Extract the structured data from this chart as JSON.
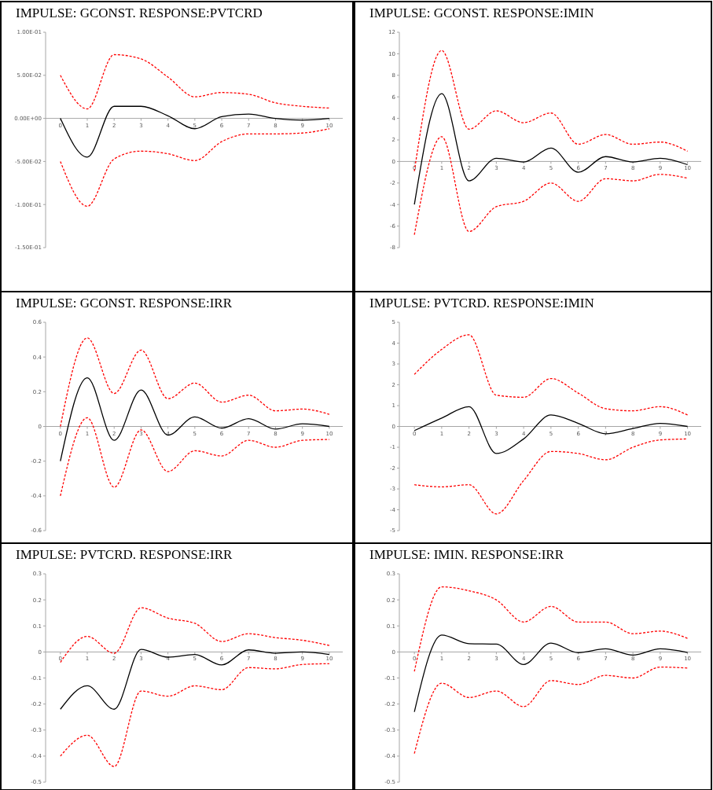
{
  "chart_data": [
    {
      "type": "line",
      "title": "IMPULSE: GCONST. RESPONSE:PVTCRD",
      "x": [
        0,
        1,
        2,
        3,
        4,
        5,
        6,
        7,
        8,
        9,
        10
      ],
      "xlim": [
        -0.55,
        10.5
      ],
      "xticks": [
        0,
        1,
        2,
        3,
        4,
        5,
        6,
        7,
        8,
        9,
        10
      ],
      "ylim": [
        -0.15,
        0.1
      ],
      "yticks": [
        {
          "value": 0.1,
          "label": "1.00E-01"
        },
        {
          "value": 0.05,
          "label": "5.00E-02"
        },
        {
          "value": 0,
          "label": "0.00E+00"
        },
        {
          "value": -0.05,
          "label": "-5.00E-02"
        },
        {
          "value": -0.1,
          "label": "-1.00E-01"
        },
        {
          "value": -0.15,
          "label": "-1.50E-01"
        }
      ],
      "series": [
        {
          "color": "#000000",
          "line_style": "solid",
          "values": [
            0,
            -0.045,
            0.014,
            0.014,
            0.003,
            -0.012,
            0.002,
            0.005,
            0,
            -0.002,
            0
          ]
        },
        {
          "color": "#ff0000",
          "line_style": "dashed",
          "values": [
            0.05,
            0.011,
            0.074,
            0.069,
            0.048,
            0.025,
            0.03,
            0.028,
            0.018,
            0.014,
            0.012
          ]
        },
        {
          "color": "#ff0000",
          "line_style": "dashed",
          "values": [
            -0.05,
            -0.102,
            -0.047,
            -0.038,
            -0.041,
            -0.049,
            -0.027,
            -0.018,
            -0.018,
            -0.017,
            -0.012
          ]
        }
      ]
    },
    {
      "type": "line",
      "title": "IMPULSE: GCONST. RESPONSE:IMIN",
      "x": [
        0,
        1,
        2,
        3,
        4,
        5,
        6,
        7,
        8,
        9,
        10
      ],
      "xlim": [
        -0.55,
        10.5
      ],
      "xticks": [
        0,
        1,
        2,
        3,
        4,
        5,
        6,
        7,
        8,
        9,
        10
      ],
      "ylim": [
        -8,
        12
      ],
      "yticks": [
        12,
        10,
        8,
        6,
        4,
        2,
        0,
        -2,
        -4,
        -6,
        -8
      ],
      "series": [
        {
          "color": "#000000",
          "line_style": "solid",
          "values": [
            -4,
            6.3,
            -1.8,
            0.3,
            -0.05,
            1.25,
            -1,
            0.45,
            -0.05,
            0.3,
            -0.3
          ]
        },
        {
          "color": "#ff0000",
          "line_style": "dashed",
          "values": [
            -0.9,
            10.3,
            3,
            4.7,
            3.6,
            4.5,
            1.6,
            2.5,
            1.6,
            1.8,
            0.95
          ]
        },
        {
          "color": "#ff0000",
          "line_style": "dashed",
          "values": [
            -6.8,
            2.3,
            -6.5,
            -4.2,
            -3.7,
            -2,
            -3.7,
            -1.6,
            -1.8,
            -1.2,
            -1.55
          ]
        }
      ]
    },
    {
      "type": "line",
      "title": "IMPULSE: GCONST. RESPONSE:IRR",
      "x": [
        0,
        1,
        2,
        3,
        4,
        5,
        6,
        7,
        8,
        9,
        10
      ],
      "xlim": [
        -0.55,
        10.5
      ],
      "xticks": [
        0,
        1,
        2,
        3,
        4,
        5,
        6,
        7,
        8,
        9,
        10
      ],
      "ylim": [
        -0.6,
        0.6
      ],
      "yticks": [
        0.6,
        0.4,
        0.2,
        0,
        -0.2,
        -0.4,
        -0.6
      ],
      "series": [
        {
          "color": "#000000",
          "line_style": "solid",
          "values": [
            -0.2,
            0.28,
            -0.08,
            0.21,
            -0.05,
            0.055,
            -0.01,
            0.045,
            -0.015,
            0.015,
            0
          ]
        },
        {
          "color": "#ff0000",
          "line_style": "dashed",
          "values": [
            0,
            0.51,
            0.19,
            0.44,
            0.16,
            0.25,
            0.14,
            0.18,
            0.09,
            0.1,
            0.07
          ]
        },
        {
          "color": "#ff0000",
          "line_style": "dashed",
          "values": [
            -0.4,
            0.05,
            -0.35,
            -0.02,
            -0.26,
            -0.14,
            -0.17,
            -0.08,
            -0.12,
            -0.08,
            -0.075
          ]
        }
      ]
    },
    {
      "type": "line",
      "title": "IMPULSE: PVTCRD. RESPONSE:IMIN",
      "x": [
        0,
        1,
        2,
        3,
        4,
        5,
        6,
        7,
        8,
        9,
        10
      ],
      "xlim": [
        -0.55,
        10.5
      ],
      "xticks": [
        0,
        1,
        2,
        3,
        4,
        5,
        6,
        7,
        8,
        9,
        10
      ],
      "ylim": [
        -5,
        5
      ],
      "yticks": [
        5,
        4,
        3,
        2,
        1,
        0,
        -1,
        -2,
        -3,
        -4,
        -5
      ],
      "series": [
        {
          "color": "#000000",
          "line_style": "solid",
          "values": [
            -0.2,
            0.4,
            0.95,
            -1.3,
            -0.6,
            0.55,
            0.15,
            -0.35,
            -0.1,
            0.15,
            0
          ]
        },
        {
          "color": "#ff0000",
          "line_style": "dashed",
          "values": [
            2.5,
            3.7,
            4.4,
            1.5,
            1.4,
            2.3,
            1.6,
            0.85,
            0.75,
            0.95,
            0.55
          ]
        },
        {
          "color": "#ff0000",
          "line_style": "dashed",
          "values": [
            -2.8,
            -2.9,
            -2.8,
            -4.2,
            -2.6,
            -1.2,
            -1.3,
            -1.6,
            -1,
            -0.65,
            -0.6
          ]
        }
      ]
    },
    {
      "type": "line",
      "title": "IMPULSE: PVTCRD. RESPONSE:IRR",
      "x": [
        0,
        1,
        2,
        3,
        4,
        5,
        6,
        7,
        8,
        9,
        10
      ],
      "xlim": [
        -0.55,
        10.5
      ],
      "xticks": [
        0,
        1,
        2,
        3,
        4,
        5,
        6,
        7,
        8,
        9,
        10
      ],
      "ylim": [
        -0.5,
        0.3
      ],
      "yticks": [
        0.3,
        0.2,
        0.1,
        0,
        -0.1,
        -0.2,
        -0.3,
        -0.4,
        -0.5
      ],
      "series": [
        {
          "color": "#000000",
          "line_style": "solid",
          "values": [
            -0.22,
            -0.13,
            -0.22,
            0.01,
            -0.02,
            -0.01,
            -0.05,
            0.008,
            -0.005,
            0,
            -0.01
          ]
        },
        {
          "color": "#ff0000",
          "line_style": "dashed",
          "values": [
            -0.04,
            0.06,
            -0.005,
            0.17,
            0.13,
            0.11,
            0.04,
            0.07,
            0.055,
            0.045,
            0.025
          ]
        },
        {
          "color": "#ff0000",
          "line_style": "dashed",
          "values": [
            -0.4,
            -0.32,
            -0.44,
            -0.15,
            -0.17,
            -0.13,
            -0.145,
            -0.06,
            -0.065,
            -0.048,
            -0.045
          ]
        }
      ]
    },
    {
      "type": "line",
      "title": "IMPULSE: IMIN. RESPONSE:IRR",
      "x": [
        0,
        1,
        2,
        3,
        4,
        5,
        6,
        7,
        8,
        9,
        10
      ],
      "xlim": [
        -0.55,
        10.5
      ],
      "xticks": [
        0,
        1,
        2,
        3,
        4,
        5,
        6,
        7,
        8,
        9,
        10
      ],
      "ylim": [
        -0.5,
        0.3
      ],
      "yticks": [
        0.3,
        0.2,
        0.1,
        0,
        -0.1,
        -0.2,
        -0.3,
        -0.4,
        -0.5
      ],
      "series": [
        {
          "color": "#000000",
          "line_style": "solid",
          "values": [
            -0.23,
            0.065,
            0.032,
            0.03,
            -0.048,
            0.034,
            -0.003,
            0.012,
            -0.012,
            0.012,
            -0.002
          ]
        },
        {
          "color": "#ff0000",
          "line_style": "dashed",
          "values": [
            -0.075,
            0.25,
            0.235,
            0.2,
            0.115,
            0.175,
            0.115,
            0.115,
            0.07,
            0.08,
            0.052
          ]
        },
        {
          "color": "#ff0000",
          "line_style": "dashed",
          "values": [
            -0.39,
            -0.12,
            -0.175,
            -0.15,
            -0.21,
            -0.11,
            -0.125,
            -0.09,
            -0.1,
            -0.058,
            -0.062
          ]
        }
      ]
    }
  ]
}
